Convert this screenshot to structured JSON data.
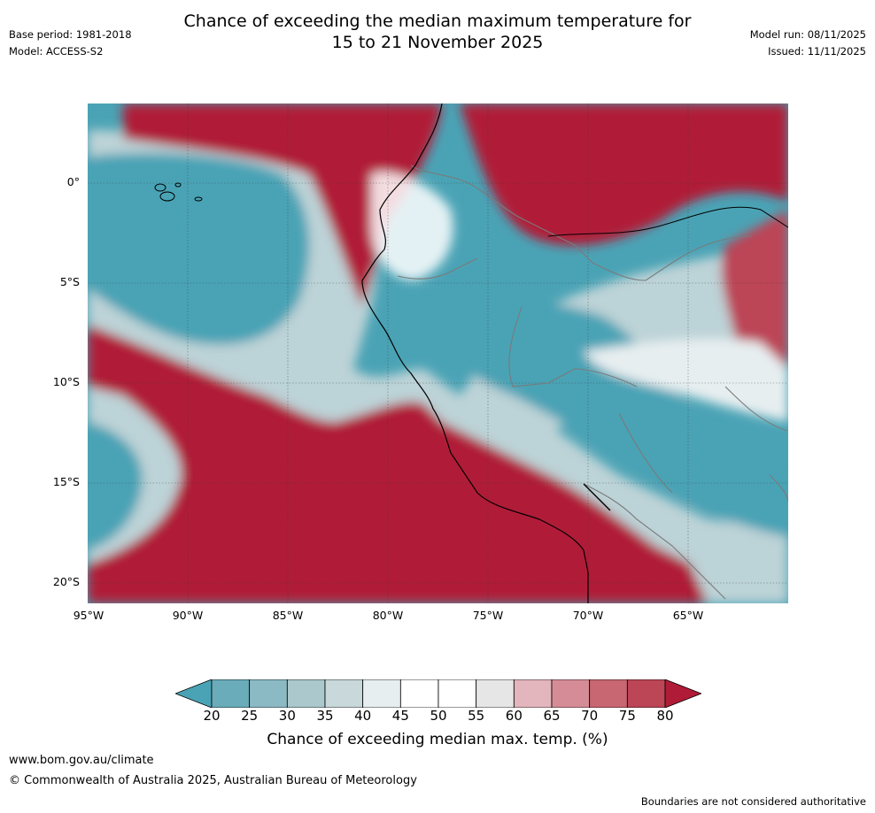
{
  "title": {
    "line1": "Chance of exceeding the median maximum temperature for",
    "line2": "15 to 21 November 2025"
  },
  "meta_left": {
    "base_period": "Base period: 1981-2018",
    "model": "Model: ACCESS-S2"
  },
  "meta_right": {
    "model_run": "Model run: 08/11/2025",
    "issued": "Issued: 11/11/2025"
  },
  "map": {
    "region": "Western South America and eastern Pacific",
    "lat_labels": [
      "0°",
      "5°S",
      "10°S",
      "15°S",
      "20°S"
    ],
    "lon_labels": [
      "95°W",
      "90°W",
      "85°W",
      "80°W",
      "75°W",
      "70°W",
      "65°W"
    ]
  },
  "colorbar": {
    "ticks": [
      "20",
      "25",
      "30",
      "35",
      "40",
      "45",
      "50",
      "55",
      "60",
      "65",
      "70",
      "75",
      "80"
    ],
    "colors": [
      "#4aa3b5",
      "#6aacb9",
      "#8bbac4",
      "#abc8cc",
      "#c9d8da",
      "#e7eef0",
      "#ffffff",
      "#ffffff",
      "#e6e6e6",
      "#e2b6bc",
      "#d68c96",
      "#c86672",
      "#bc4556",
      "#b01c37"
    ],
    "label": "Chance of exceeding median max. temp. (%)"
  },
  "footer": {
    "website": "www.bom.gov.au/climate",
    "copyright": "© Commonwealth of Australia 2025, Australian Bureau of Meteorology",
    "disclaimer": "Boundaries are not considered authoritative"
  }
}
